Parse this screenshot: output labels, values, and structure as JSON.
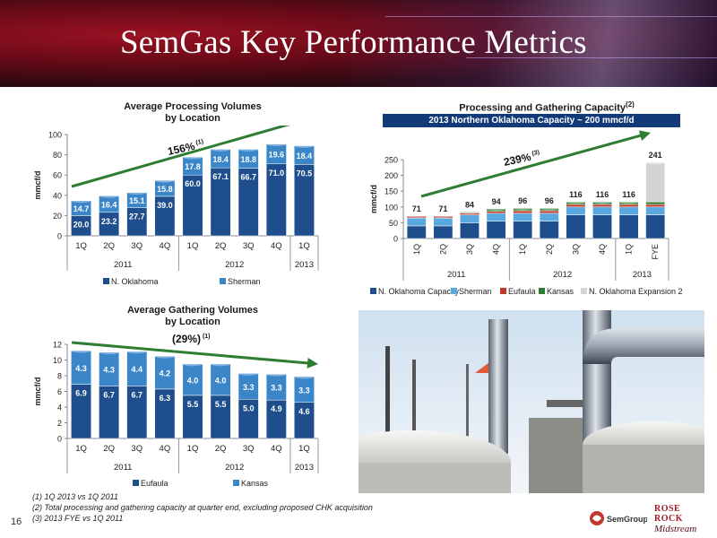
{
  "slide": {
    "title": "SemGas Key Performance Metrics",
    "page_number": "16",
    "footnotes": [
      "(1)  1Q 2013 vs 1Q 2011",
      "(2)  Total processing and gathering capacity at quarter end, excluding proposed CHK acquisition",
      "(3)  2013 FYE vs 1Q 2011"
    ],
    "logos": {
      "semgroup": "SemGroup",
      "rose_rock_1": "ROSE ROCK",
      "rose_rock_2": "Midstream"
    }
  },
  "chart_data": [
    {
      "type": "bar",
      "stacked": true,
      "title": "Average Processing Volumes",
      "subtitle": "by Location",
      "ylabel": "mmcf/d",
      "ylim": [
        0,
        100
      ],
      "yticks": [
        0,
        20,
        40,
        60,
        80,
        100
      ],
      "categories": [
        "1Q",
        "2Q",
        "3Q",
        "4Q",
        "1Q",
        "2Q",
        "3Q",
        "4Q",
        "1Q"
      ],
      "year_groups": [
        {
          "label": "2011",
          "span": 4
        },
        {
          "label": "2012",
          "span": 4
        },
        {
          "label": "2013",
          "span": 1
        }
      ],
      "series": [
        {
          "name": "N. Oklahoma",
          "color": "#1f4e8c",
          "values": [
            20.0,
            23.2,
            27.7,
            39.0,
            60.0,
            67.1,
            66.7,
            71.0,
            70.5
          ]
        },
        {
          "name": "Sherman",
          "color": "#3a86c8",
          "values": [
            14.7,
            16.4,
            15.1,
            15.8,
            17.8,
            18.4,
            18.8,
            19.6,
            18.4
          ]
        }
      ],
      "labels": [
        [
          "20.0",
          "23.2",
          "27.7",
          "39.0",
          "60.0",
          "67.1",
          "66.7",
          "71.0",
          "70.5"
        ],
        [
          "14.7",
          "16.4",
          "15.1",
          "15.8",
          "17.8",
          "18.4",
          "18.8",
          "19.6",
          "18.4"
        ]
      ],
      "annotation": {
        "text": "156%",
        "sup": "(1)",
        "direction": "up"
      },
      "legend": "bottom",
      "grid": false
    },
    {
      "type": "bar",
      "stacked": true,
      "title": "Processing and Gathering Capacity",
      "title_sup": "(2)",
      "banner": "2013 Northern Oklahoma Capacity ~ 200 mmcf/d",
      "ylabel": "mmcf/d",
      "ylim": [
        0,
        250
      ],
      "yticks": [
        0,
        50,
        100,
        150,
        200,
        250
      ],
      "categories": [
        "1Q",
        "2Q",
        "3Q",
        "4Q",
        "1Q",
        "2Q",
        "3Q",
        "4Q",
        "1Q",
        "FYE"
      ],
      "year_groups": [
        {
          "label": "2011",
          "span": 4
        },
        {
          "label": "2012",
          "span": 4
        },
        {
          "label": "2013",
          "span": 2
        }
      ],
      "totals": [
        "71",
        "71",
        "84",
        "94",
        "96",
        "96",
        "116",
        "116",
        "116",
        "241"
      ],
      "series": [
        {
          "name": "N. Oklahoma Capacity",
          "color": "#1f4e8c",
          "values": [
            40,
            40,
            50,
            55,
            55,
            55,
            75,
            75,
            75,
            75
          ]
        },
        {
          "name": "Sherman",
          "color": "#5aa8e0",
          "values": [
            25,
            25,
            25,
            25,
            25,
            25,
            25,
            25,
            25,
            25
          ]
        },
        {
          "name": "Eufaula",
          "color": "#c0392b",
          "values": [
            6,
            6,
            6,
            6,
            8,
            8,
            8,
            8,
            8,
            8
          ]
        },
        {
          "name": "Kansas",
          "color": "#2e7d32",
          "values": [
            0,
            0,
            3,
            8,
            8,
            8,
            8,
            8,
            8,
            8
          ]
        },
        {
          "name": "N. Oklahoma Expansion 2",
          "color": "#d4d4d4",
          "values": [
            0,
            0,
            0,
            0,
            0,
            0,
            0,
            0,
            0,
            125
          ]
        }
      ],
      "annotation": {
        "text": "239%",
        "sup": "(3)",
        "direction": "up"
      },
      "legend": "bottom",
      "grid": false
    },
    {
      "type": "bar",
      "stacked": true,
      "title": "Average Gathering Volumes",
      "subtitle": "by Location",
      "ylabel": "mmcf/d",
      "ylim": [
        0,
        12
      ],
      "yticks": [
        0,
        2,
        4,
        6,
        8,
        10,
        12
      ],
      "categories": [
        "1Q",
        "2Q",
        "3Q",
        "4Q",
        "1Q",
        "2Q",
        "3Q",
        "4Q",
        "1Q"
      ],
      "year_groups": [
        {
          "label": "2011",
          "span": 4
        },
        {
          "label": "2012",
          "span": 4
        },
        {
          "label": "2013",
          "span": 1
        }
      ],
      "series": [
        {
          "name": "Eufaula",
          "color": "#1f4e8c",
          "values": [
            6.9,
            6.7,
            6.7,
            6.3,
            5.5,
            5.5,
            5.0,
            4.9,
            4.6
          ]
        },
        {
          "name": "Kansas",
          "color": "#3a86c8",
          "values": [
            4.3,
            4.3,
            4.4,
            4.2,
            4.0,
            4.0,
            3.3,
            3.3,
            3.3
          ]
        }
      ],
      "labels": [
        [
          "6.9",
          "6.7",
          "6.7",
          "6.3",
          "5.5",
          "5.5",
          "5.0",
          "4.9",
          "4.6"
        ],
        [
          "4.3",
          "4.3",
          "4.4",
          "4.2",
          "4.0",
          "4.0",
          "3.3",
          "3.3",
          "3.3"
        ]
      ],
      "annotation": {
        "text": "(29%)",
        "sup": "(1)",
        "direction": "down"
      },
      "legend": "bottom",
      "grid": false
    }
  ]
}
